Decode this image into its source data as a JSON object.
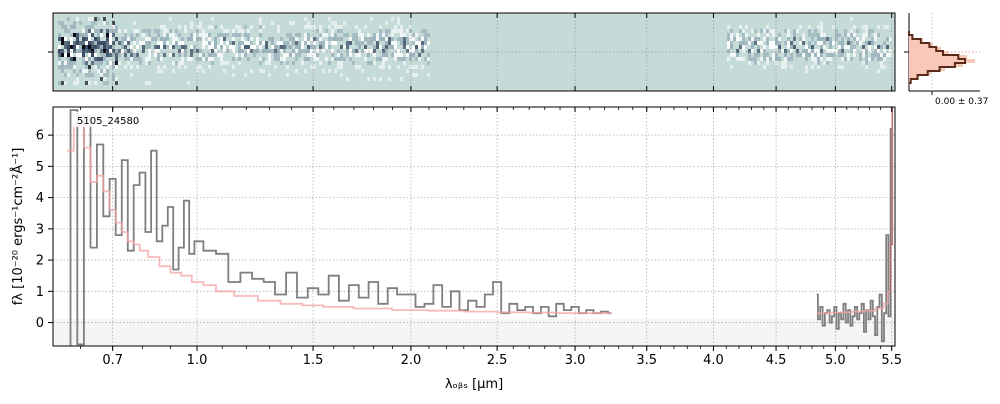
{
  "chart_data": {
    "type": "line",
    "object_label": "5105_24580",
    "xlabel": "λₒᵦₛ [μm]",
    "ylabel": "fλ [10⁻²⁰ ergs⁻¹cm⁻²Å⁻¹]",
    "x_scale": "square-root",
    "xlim": [
      0.52,
      5.53
    ],
    "ylim": [
      -0.75,
      6.9
    ],
    "x_ticks": [
      0.7,
      1.0,
      1.5,
      2.0,
      2.5,
      3.0,
      3.5,
      4.0,
      4.5,
      5.0,
      5.5
    ],
    "x_tick_labels": [
      "0.7",
      "1.0",
      "1.5",
      "2.0",
      "2.5",
      "3.0",
      "3.5",
      "4.0",
      "4.5",
      "5.0",
      "5.5"
    ],
    "y_ticks": [
      0,
      1,
      2,
      3,
      4,
      5,
      6
    ],
    "y_tick_labels": [
      "0",
      "1",
      "2",
      "3",
      "4",
      "5",
      "6"
    ],
    "grid": true,
    "histogram_label": "0.00 ± 0.37",
    "colors": {
      "data": "#7f7f7f",
      "model": "#f4a3a3",
      "model_dark": "#8b3a3a",
      "panel_bg": "#c5dbd8",
      "histogram_fill": "#f8c8b8",
      "histogram_line": "#5a2a1a"
    },
    "series": [
      {
        "segments": [
          {
            "x": [
              0.56,
              0.58,
              0.6,
              0.62,
              0.64,
              0.66,
              0.68,
              0.7,
              0.72,
              0.74,
              0.76,
              0.78,
              0.8,
              0.82,
              0.84,
              0.86,
              0.88,
              0.9,
              0.92,
              0.94,
              0.96,
              0.98,
              1.0,
              1.05,
              1.1,
              1.15,
              1.2,
              1.25,
              1.3,
              1.35,
              1.4,
              1.45,
              1.5,
              1.55,
              1.6,
              1.65,
              1.7,
              1.75,
              1.8,
              1.85,
              1.9,
              1.95,
              2.0,
              2.05,
              2.1,
              2.15,
              2.2,
              2.25,
              2.3,
              2.35,
              2.4,
              2.45,
              2.5,
              2.55,
              2.6,
              2.65,
              2.7,
              2.75,
              2.8,
              2.85,
              2.9,
              2.95,
              3.0,
              3.05,
              3.1,
              3.15,
              3.2,
              3.25
            ],
            "y": [
              -0.8,
              6.8,
              -0.7,
              6.6,
              2.4,
              5.7,
              3.4,
              4.6,
              2.8,
              5.2,
              2.3,
              4.4,
              4.8,
              2.9,
              5.5,
              2.6,
              3.1,
              3.7,
              1.7,
              2.4,
              3.9,
              2.2,
              2.6,
              2.3,
              2.2,
              1.3,
              1.6,
              1.4,
              1.3,
              0.9,
              1.6,
              0.8,
              1.1,
              0.9,
              1.5,
              0.7,
              1.2,
              0.8,
              1.3,
              0.6,
              1.1,
              0.9,
              0.9,
              0.5,
              0.6,
              1.2,
              0.5,
              1.0,
              0.4,
              0.7,
              0.5,
              0.9,
              1.3,
              0.3,
              0.6,
              0.4,
              0.5,
              0.3,
              0.5,
              0.2,
              0.6,
              0.4,
              0.5,
              0.3,
              0.4,
              0.3,
              0.35,
              0.3
            ]
          },
          {
            "x": [
              4.84,
              4.86,
              4.88,
              4.9,
              4.92,
              4.94,
              4.96,
              4.98,
              5.0,
              5.02,
              5.04,
              5.06,
              5.08,
              5.1,
              5.12,
              5.14,
              5.16,
              5.18,
              5.2,
              5.22,
              5.24,
              5.26,
              5.28,
              5.3,
              5.32,
              5.34,
              5.36,
              5.38,
              5.4,
              5.42,
              5.44,
              5.46,
              5.48,
              5.5,
              5.51
            ],
            "y": [
              0.9,
              0.1,
              0.5,
              -0.1,
              0.3,
              0.4,
              0.0,
              0.2,
              0.5,
              -0.2,
              0.3,
              0.1,
              0.6,
              0.0,
              0.4,
              -0.1,
              0.2,
              0.5,
              0.1,
              0.3,
              0.6,
              -0.3,
              0.4,
              0.1,
              0.7,
              0.2,
              -0.4,
              0.5,
              0.9,
              -0.6,
              0.3,
              2.8,
              0.2,
              6.2,
              6.2
            ]
          }
        ]
      },
      {
        "segments": [
          {
            "x": [
              0.56,
              0.6,
              0.62,
              0.64,
              0.66,
              0.68,
              0.7,
              0.72,
              0.74,
              0.76,
              0.78,
              0.8,
              0.84,
              0.88,
              0.92,
              0.96,
              1.0,
              1.05,
              1.1,
              1.2,
              1.3,
              1.4,
              1.5,
              1.6,
              1.8,
              2.0,
              2.2,
              2.4,
              2.6,
              2.8,
              3.0,
              3.25
            ],
            "y": [
              5.5,
              6.3,
              5.6,
              4.5,
              4.7,
              4.2,
              3.6,
              3.2,
              2.9,
              2.6,
              2.5,
              2.3,
              2.1,
              1.8,
              1.6,
              1.5,
              1.3,
              1.2,
              1.0,
              0.85,
              0.7,
              0.6,
              0.55,
              0.5,
              0.45,
              0.4,
              0.38,
              0.35,
              0.33,
              0.32,
              0.3,
              0.3
            ]
          },
          {
            "x": [
              4.84,
              4.9,
              5.0,
              5.1,
              5.2,
              5.3,
              5.4,
              5.45,
              5.48,
              5.5,
              5.51
            ],
            "y": [
              0.3,
              0.3,
              0.32,
              0.33,
              0.35,
              0.38,
              0.45,
              0.6,
              1.0,
              2.5,
              6.9
            ]
          }
        ]
      }
    ]
  }
}
